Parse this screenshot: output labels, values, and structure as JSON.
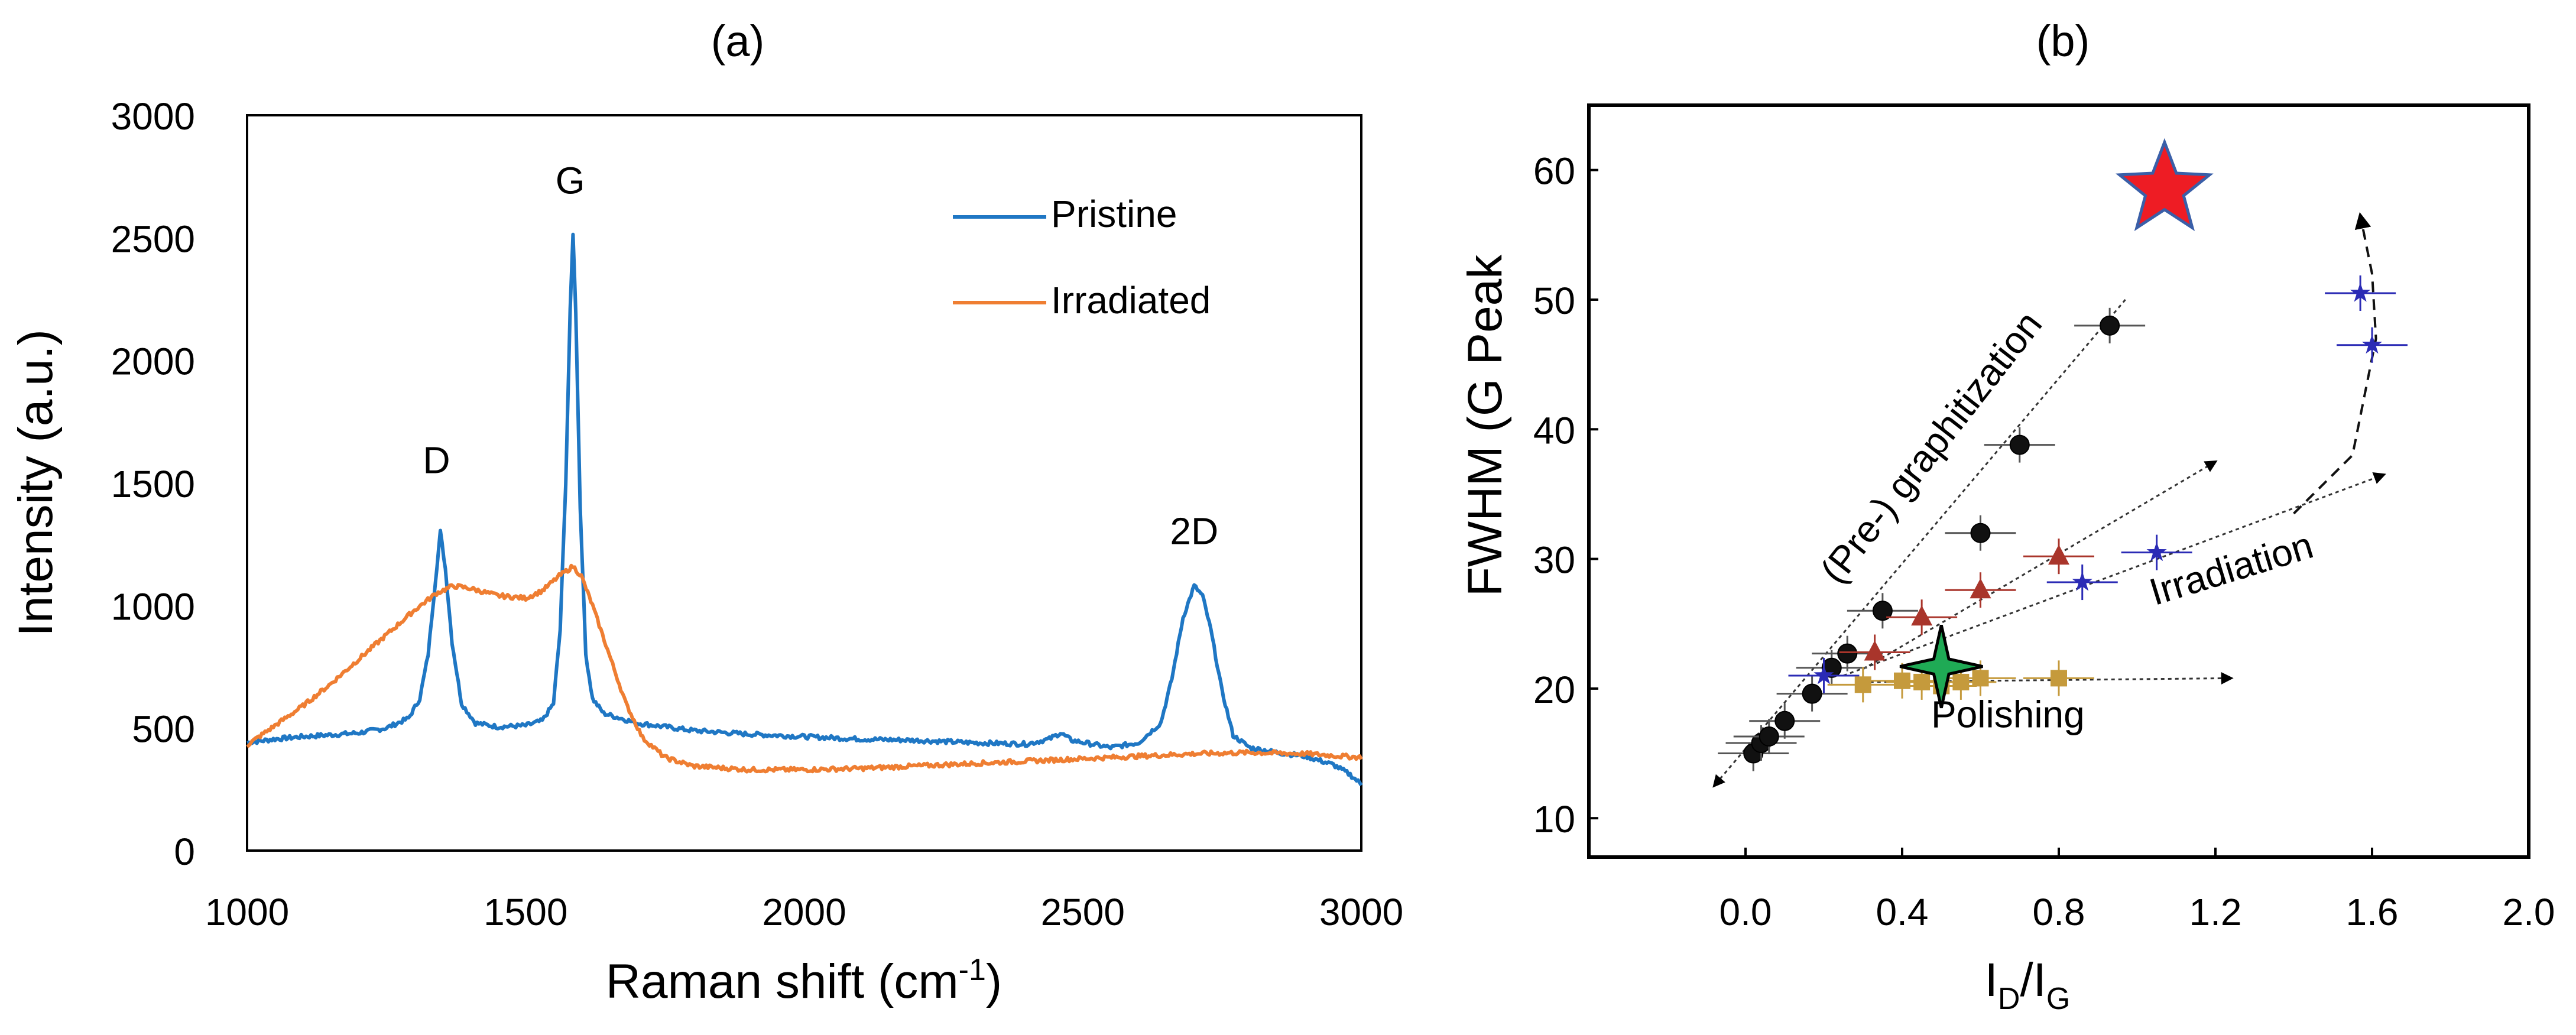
{
  "chart_data": [
    {
      "type": "line",
      "panel_label": "(a)",
      "xlabel": "Raman shift (cm",
      "xlabel_sup": "-1",
      "xlabel_end": ")",
      "ylabel": "Intensity (a.u.)",
      "xlim": [
        1000,
        3000
      ],
      "ylim": [
        0,
        3000
      ],
      "x_ticks": [
        "1000",
        "1500",
        "2000",
        "2500",
        "3000"
      ],
      "y_ticks": [
        "0",
        "500",
        "1000",
        "1500",
        "2000",
        "2500",
        "3000"
      ],
      "annotations": [
        {
          "text": "D",
          "x": 1340,
          "y": 1540
        },
        {
          "text": "G",
          "x": 1580,
          "y": 2680
        },
        {
          "text": "2D",
          "x": 2700,
          "y": 1250
        }
      ],
      "legend_position": "top-right",
      "series": [
        {
          "name": "Pristine",
          "color": "#1f77c4",
          "points": [
            [
              1000,
              440
            ],
            [
              1050,
              455
            ],
            [
              1100,
              465
            ],
            [
              1150,
              472
            ],
            [
              1200,
              480
            ],
            [
              1250,
              500
            ],
            [
              1290,
              540
            ],
            [
              1310,
              620
            ],
            [
              1325,
              800
            ],
            [
              1338,
              1100
            ],
            [
              1347,
              1300
            ],
            [
              1356,
              1150
            ],
            [
              1368,
              850
            ],
            [
              1385,
              600
            ],
            [
              1410,
              520
            ],
            [
              1450,
              505
            ],
            [
              1500,
              510
            ],
            [
              1530,
              530
            ],
            [
              1550,
              600
            ],
            [
              1562,
              900
            ],
            [
              1572,
              1500
            ],
            [
              1580,
              2200
            ],
            [
              1585,
              2520
            ],
            [
              1590,
              2200
            ],
            [
              1598,
              1400
            ],
            [
              1608,
              800
            ],
            [
              1620,
              620
            ],
            [
              1640,
              560
            ],
            [
              1700,
              520
            ],
            [
              1800,
              490
            ],
            [
              1900,
              475
            ],
            [
              2000,
              465
            ],
            [
              2100,
              455
            ],
            [
              2200,
              450
            ],
            [
              2300,
              440
            ],
            [
              2400,
              435
            ],
            [
              2440,
              455
            ],
            [
              2460,
              480
            ],
            [
              2480,
              450
            ],
            [
              2550,
              420
            ],
            [
              2600,
              440
            ],
            [
              2640,
              520
            ],
            [
              2660,
              700
            ],
            [
              2680,
              950
            ],
            [
              2700,
              1080
            ],
            [
              2715,
              1040
            ],
            [
              2730,
              900
            ],
            [
              2750,
              650
            ],
            [
              2770,
              470
            ],
            [
              2800,
              420
            ],
            [
              2850,
              400
            ],
            [
              2900,
              385
            ],
            [
              2950,
              350
            ],
            [
              2980,
              310
            ],
            [
              3000,
              270
            ]
          ]
        },
        {
          "name": "Irradiated",
          "color": "#ef7e32",
          "points": [
            [
              1000,
              430
            ],
            [
              1050,
              510
            ],
            [
              1100,
              590
            ],
            [
              1150,
              680
            ],
            [
              1200,
              780
            ],
            [
              1250,
              880
            ],
            [
              1300,
              980
            ],
            [
              1340,
              1050
            ],
            [
              1370,
              1080
            ],
            [
              1400,
              1070
            ],
            [
              1450,
              1040
            ],
            [
              1500,
              1030
            ],
            [
              1530,
              1060
            ],
            [
              1560,
              1120
            ],
            [
              1585,
              1160
            ],
            [
              1600,
              1120
            ],
            [
              1620,
              1000
            ],
            [
              1650,
              800
            ],
            [
              1680,
              600
            ],
            [
              1710,
              460
            ],
            [
              1750,
              380
            ],
            [
              1800,
              345
            ],
            [
              1900,
              330
            ],
            [
              2000,
              330
            ],
            [
              2100,
              335
            ],
            [
              2200,
              345
            ],
            [
              2300,
              355
            ],
            [
              2400,
              365
            ],
            [
              2500,
              375
            ],
            [
              2600,
              385
            ],
            [
              2700,
              395
            ],
            [
              2800,
              400
            ],
            [
              2900,
              395
            ],
            [
              3000,
              380
            ]
          ]
        }
      ]
    },
    {
      "type": "scatter",
      "panel_label": "(b)",
      "xlabel_main": "I",
      "xlabel_sub1": "D",
      "xlabel_slash": "/I",
      "xlabel_sub2": "G",
      "ylabel": "FWHM (G Peak",
      "xlim": [
        -0.4,
        2.0
      ],
      "ylim": [
        7,
        65
      ],
      "x_ticks": [
        "0.0",
        "0.4",
        "0.8",
        "1.2",
        "1.6",
        "2.0"
      ],
      "y_ticks": [
        "10",
        "20",
        "30",
        "40",
        "50",
        "60"
      ],
      "annotations": [
        {
          "text": "(Pre-) graphitization",
          "x": 0.5,
          "y": 38,
          "rotate": -52
        },
        {
          "text": "Irradiation",
          "x": 1.25,
          "y": 28.3,
          "rotate": -17
        },
        {
          "text": "Polishing",
          "x": 0.67,
          "y": 17
        }
      ],
      "series": [
        {
          "name": "graphitization",
          "marker": "circle",
          "color": "#111111",
          "points": [
            [
              0.02,
              15
            ],
            [
              0.04,
              15.8
            ],
            [
              0.06,
              16.3
            ],
            [
              0.1,
              17.5
            ],
            [
              0.17,
              19.6
            ],
            [
              0.22,
              21.6
            ],
            [
              0.26,
              22.7
            ],
            [
              0.35,
              26
            ],
            [
              0.6,
              32
            ],
            [
              0.7,
              38.8
            ],
            [
              0.93,
              48
            ]
          ]
        },
        {
          "name": "irradiation-triangles",
          "marker": "triangle",
          "color": "#a9352b",
          "points": [
            [
              0.33,
              22.8
            ],
            [
              0.45,
              25.5
            ],
            [
              0.6,
              27.6
            ],
            [
              0.8,
              30.2
            ]
          ]
        },
        {
          "name": "irradiation-stars",
          "marker": "star",
          "color": "#2b2bb5",
          "points": [
            [
              0.2,
              21
            ],
            [
              0.86,
              28.2
            ],
            [
              1.05,
              30.5
            ],
            [
              1.57,
              50.5
            ],
            [
              1.6,
              46.5
            ]
          ]
        },
        {
          "name": "polishing",
          "marker": "square",
          "color": "#c59a3c",
          "points": [
            [
              0.3,
              20.3
            ],
            [
              0.4,
              20.6
            ],
            [
              0.45,
              20.5
            ],
            [
              0.5,
              20.2
            ],
            [
              0.55,
              20.5
            ],
            [
              0.6,
              20.8
            ],
            [
              0.8,
              20.8
            ]
          ]
        },
        {
          "name": "highlight-red-star",
          "marker": "big-star",
          "color": "#ee1c24",
          "points": [
            [
              1.07,
              58.5
            ]
          ]
        },
        {
          "name": "highlight-green-star",
          "marker": "four-point-star",
          "color": "#1faa55",
          "points": [
            [
              0.5,
              21.7
            ]
          ]
        }
      ],
      "trend_arrows": [
        {
          "from": [
            0.97,
            50
          ],
          "to": [
            -0.08,
            12.5
          ]
        },
        {
          "from": [
            0.3,
            21.5
          ],
          "to": [
            1.2,
            37.5
          ]
        },
        {
          "from": [
            0.25,
            21.0
          ],
          "to": [
            1.63,
            36.5
          ]
        },
        {
          "from": [
            0.3,
            20.5
          ],
          "to": [
            1.24,
            20.8
          ]
        }
      ],
      "dashed_curve": [
        [
          1.4,
          33.5
        ],
        [
          1.55,
          38
        ],
        [
          1.61,
          47
        ],
        [
          1.6,
          52
        ],
        [
          1.57,
          56.5
        ]
      ]
    }
  ]
}
